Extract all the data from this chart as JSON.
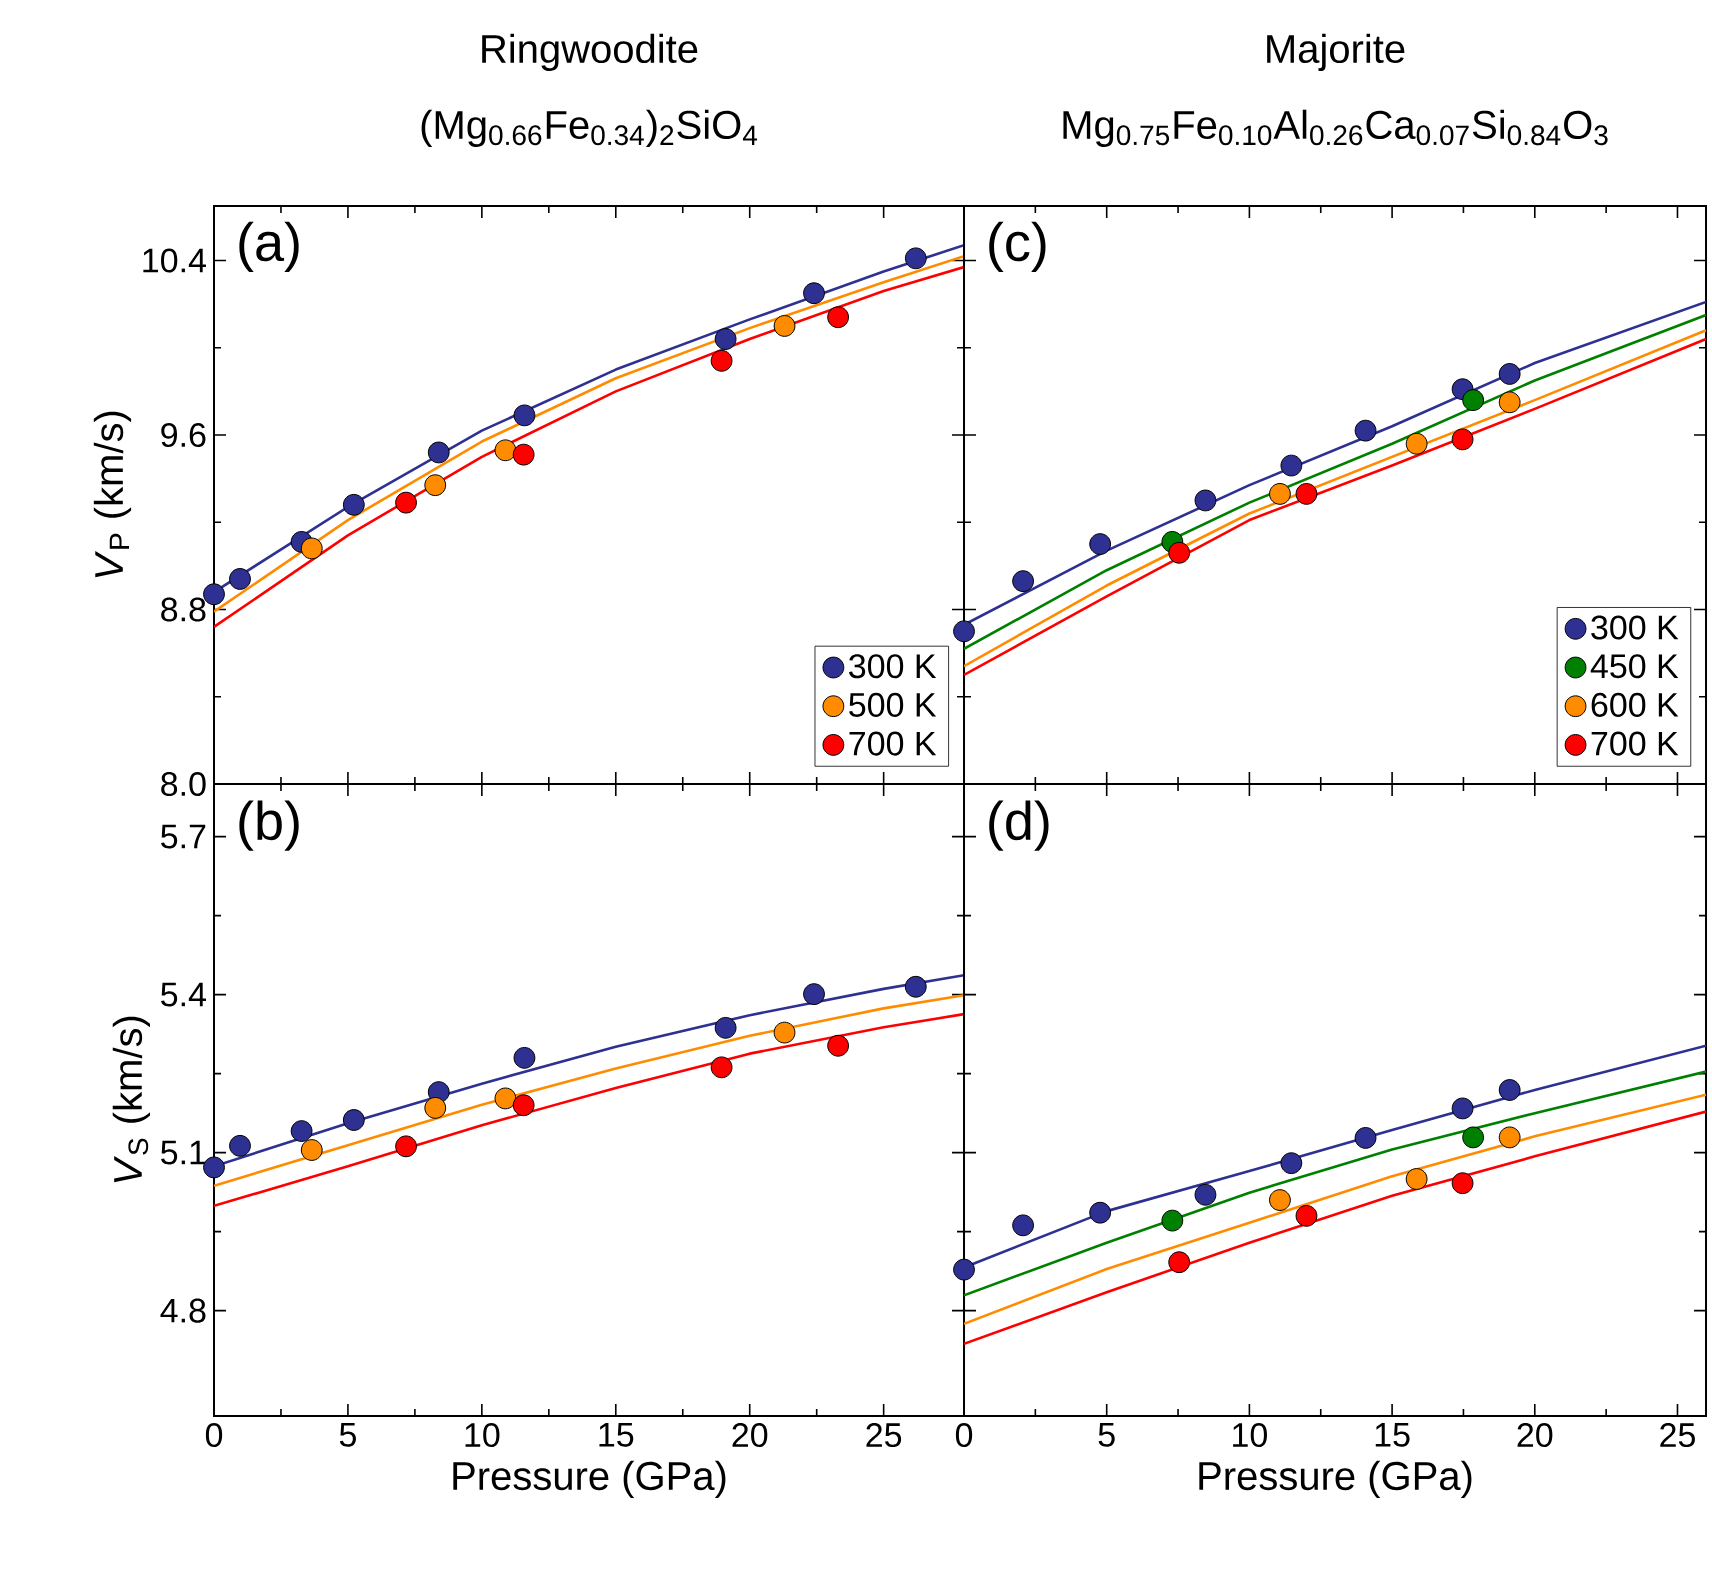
{
  "chart_data": [
    {
      "type": "scatter",
      "title": "Ringwoodite",
      "subtitle": "(Mg$_{0.66}$Fe$_{0.34}$)$_{2}$SiO$_{4}$",
      "ylabel": "*V*$_{P}$ (km/s)",
      "annotations": [
        "(a)"
      ],
      "xlim": [
        0,
        28
      ],
      "xticks": [
        0,
        5,
        10,
        15,
        20,
        25
      ],
      "ylim": [
        8.0,
        10.65
      ],
      "yticks": [
        {
          "value": 8.0,
          "label": "8.0"
        },
        {
          "value": 8.8,
          "label": "8.8"
        },
        {
          "value": 9.6,
          "label": "9.6"
        },
        {
          "value": 10.4,
          "label": "10.4"
        }
      ],
      "tick_labels": "y",
      "legend": "bottom right",
      "series": [
        {
          "type": "line",
          "marker": "none",
          "color": "#2e3192",
          "x": [
            0,
            5,
            10,
            15,
            20,
            25,
            28
          ],
          "values": [
            8.88,
            9.27,
            9.62,
            9.9,
            10.13,
            10.35,
            10.47
          ]
        },
        {
          "type": "line",
          "marker": "none",
          "color": "#ff8c00",
          "x": [
            0,
            5,
            10,
            15,
            20,
            25,
            28
          ],
          "values": [
            8.79,
            9.21,
            9.57,
            9.86,
            10.09,
            10.3,
            10.42
          ]
        },
        {
          "type": "line",
          "marker": "none",
          "color": "#ff0000",
          "x": [
            0,
            5,
            10,
            15,
            20,
            25,
            28
          ],
          "values": [
            8.72,
            9.14,
            9.5,
            9.8,
            10.04,
            10.26,
            10.37
          ]
        },
        {
          "type": "scatter",
          "marker": "circle",
          "name": "300 K",
          "color": "#2e3192",
          "x": [
            0,
            0.97,
            3.27,
            5.22,
            8.39,
            11.59,
            19.1,
            22.4,
            26.2
          ],
          "values": [
            8.87,
            8.94,
            9.11,
            9.28,
            9.52,
            9.69,
            10.04,
            10.25,
            10.41
          ]
        },
        {
          "type": "scatter",
          "marker": "circle",
          "name": "500 K",
          "color": "#ff8c00",
          "x": [
            3.65,
            8.26,
            10.88,
            21.3
          ],
          "values": [
            9.08,
            9.37,
            9.53,
            10.1
          ]
        },
        {
          "type": "scatter",
          "marker": "circle",
          "name": "700 K",
          "color": "#ff0000",
          "x": [
            7.17,
            11.56,
            18.95,
            23.3
          ],
          "values": [
            9.29,
            9.51,
            9.94,
            10.14
          ]
        }
      ]
    },
    {
      "type": "scatter",
      "title": "Majorite",
      "subtitle": "Mg$_{0.75}$Fe$_{0.10}$Al$_{0.26}$Ca$_{0.07}$Si$_{0.84}$O$_{3}$",
      "annotations": [
        "(c)"
      ],
      "xlim": [
        0,
        26
      ],
      "xticks": [
        0,
        5,
        10,
        15,
        20,
        25
      ],
      "ylim": [
        8.0,
        10.65
      ],
      "yticks": [
        8.0,
        8.8,
        9.6,
        10.4
      ],
      "tick_labels": false,
      "legend": "bottom right",
      "series": [
        {
          "type": "line",
          "marker": "none",
          "color": "#2e3192",
          "x": [
            0,
            5,
            10,
            15,
            20,
            26
          ],
          "values": [
            8.73,
            9.07,
            9.37,
            9.64,
            9.93,
            10.21
          ]
        },
        {
          "type": "line",
          "marker": "none",
          "color": "#008000",
          "x": [
            0,
            5,
            10,
            15,
            20,
            26
          ],
          "values": [
            8.62,
            8.98,
            9.29,
            9.56,
            9.85,
            10.15
          ]
        },
        {
          "type": "line",
          "marker": "none",
          "color": "#ff8c00",
          "x": [
            0,
            5,
            10,
            15,
            20,
            26
          ],
          "values": [
            8.54,
            8.91,
            9.24,
            9.5,
            9.76,
            10.08
          ]
        },
        {
          "type": "line",
          "marker": "none",
          "color": "#ff0000",
          "x": [
            0,
            5,
            10,
            15,
            20,
            26
          ],
          "values": [
            8.5,
            8.86,
            9.21,
            9.46,
            9.72,
            10.04
          ]
        },
        {
          "type": "scatter",
          "marker": "circle",
          "name": "300 K",
          "color": "#2e3192",
          "x": [
            0,
            2.07,
            4.77,
            8.46,
            11.47,
            14.07,
            17.47,
            19.12
          ],
          "values": [
            8.7,
            8.93,
            9.1,
            9.3,
            9.46,
            9.62,
            9.81,
            9.88
          ]
        },
        {
          "type": "scatter",
          "marker": "circle",
          "name": "450 K",
          "color": "#008000",
          "x": [
            7.3,
            17.84
          ],
          "values": [
            9.11,
            9.76
          ]
        },
        {
          "type": "scatter",
          "marker": "circle",
          "name": "600 K",
          "color": "#ff8c00",
          "x": [
            11.07,
            15.86,
            19.12
          ],
          "values": [
            9.33,
            9.56,
            9.75
          ]
        },
        {
          "type": "scatter",
          "marker": "circle",
          "name": "700 K",
          "color": "#ff0000",
          "x": [
            7.54,
            12.0,
            17.47
          ],
          "values": [
            9.06,
            9.33,
            9.58
          ]
        }
      ]
    },
    {
      "type": "scatter",
      "xlabel": "Pressure (GPa)",
      "ylabel": "*V*$_{S}$ (km/s)",
      "annotations": [
        "(b)"
      ],
      "xlim": [
        0,
        28
      ],
      "xticks": [
        0,
        5,
        10,
        15,
        20,
        25
      ],
      "ylim": [
        4.6,
        5.8
      ],
      "yticks": [
        4.8,
        5.1,
        5.4,
        5.7
      ],
      "series": [
        {
          "type": "line",
          "marker": "none",
          "color": "#2e3192",
          "x": [
            0,
            5,
            10,
            15,
            20,
            25,
            28
          ],
          "values": [
            5.074,
            5.156,
            5.231,
            5.301,
            5.361,
            5.411,
            5.437
          ]
        },
        {
          "type": "line",
          "marker": "none",
          "color": "#ff8c00",
          "x": [
            0,
            5,
            10,
            15,
            20,
            25,
            28
          ],
          "values": [
            5.037,
            5.114,
            5.191,
            5.26,
            5.322,
            5.374,
            5.399
          ]
        },
        {
          "type": "line",
          "marker": "none",
          "color": "#ff0000",
          "x": [
            0,
            5,
            10,
            15,
            20,
            25,
            28
          ],
          "values": [
            4.999,
            5.074,
            5.152,
            5.223,
            5.288,
            5.338,
            5.363
          ]
        },
        {
          "type": "scatter",
          "marker": "circle",
          "color": "#2e3192",
          "x": [
            0,
            0.97,
            3.27,
            5.22,
            8.39,
            11.59,
            19.1,
            22.4,
            26.2
          ],
          "values": [
            5.072,
            5.113,
            5.141,
            5.162,
            5.215,
            5.28,
            5.337,
            5.401,
            5.415
          ]
        },
        {
          "type": "scatter",
          "marker": "circle",
          "color": "#ff8c00",
          "x": [
            3.65,
            8.26,
            10.88,
            21.3
          ],
          "values": [
            5.105,
            5.185,
            5.203,
            5.328
          ]
        },
        {
          "type": "scatter",
          "marker": "circle",
          "color": "#ff0000",
          "x": [
            7.17,
            11.56,
            18.95,
            23.3
          ],
          "values": [
            5.112,
            5.19,
            5.262,
            5.303
          ]
        }
      ]
    },
    {
      "type": "scatter",
      "xlabel": "Pressure (GPa)",
      "annotations": [
        "(d)"
      ],
      "xlim": [
        0,
        26
      ],
      "xticks": [
        0,
        5,
        10,
        15,
        20,
        25
      ],
      "ylim": [
        4.6,
        5.8
      ],
      "yticks": [
        4.8,
        5.1,
        5.4,
        5.7
      ],
      "tick_labels": "x",
      "series": [
        {
          "type": "line",
          "marker": "none",
          "color": "#2e3192",
          "x": [
            0,
            5,
            10,
            15,
            20,
            26
          ],
          "values": [
            4.882,
            4.989,
            5.065,
            5.143,
            5.219,
            5.303
          ]
        },
        {
          "type": "line",
          "marker": "none",
          "color": "#008000",
          "x": [
            0,
            5,
            10,
            15,
            20,
            26
          ],
          "values": [
            4.829,
            4.929,
            5.024,
            5.106,
            5.175,
            5.254
          ]
        },
        {
          "type": "line",
          "marker": "none",
          "color": "#ff8c00",
          "x": [
            0,
            5,
            10,
            15,
            20,
            26
          ],
          "values": [
            4.775,
            4.879,
            4.967,
            5.055,
            5.131,
            5.21
          ]
        },
        {
          "type": "line",
          "marker": "none",
          "color": "#ff0000",
          "x": [
            0,
            5,
            10,
            15,
            20,
            26
          ],
          "values": [
            4.737,
            4.835,
            4.929,
            5.018,
            5.093,
            5.178
          ]
        },
        {
          "type": "scatter",
          "marker": "circle",
          "color": "#2e3192",
          "x": [
            0,
            2.07,
            4.77,
            8.46,
            11.47,
            14.07,
            17.47,
            19.12
          ],
          "values": [
            4.878,
            4.962,
            4.986,
            5.02,
            5.08,
            5.128,
            5.184,
            5.219
          ]
        },
        {
          "type": "scatter",
          "marker": "circle",
          "color": "#008000",
          "x": [
            7.3,
            17.84
          ],
          "values": [
            4.971,
            5.129
          ]
        },
        {
          "type": "scatter",
          "marker": "circle",
          "color": "#ff8c00",
          "x": [
            11.07,
            15.86,
            19.12
          ],
          "values": [
            5.01,
            5.05,
            5.129
          ]
        },
        {
          "type": "scatter",
          "marker": "circle",
          "color": "#ff0000",
          "x": [
            7.54,
            12.0,
            17.47
          ],
          "values": [
            4.892,
            4.98,
            5.042
          ]
        }
      ]
    }
  ]
}
